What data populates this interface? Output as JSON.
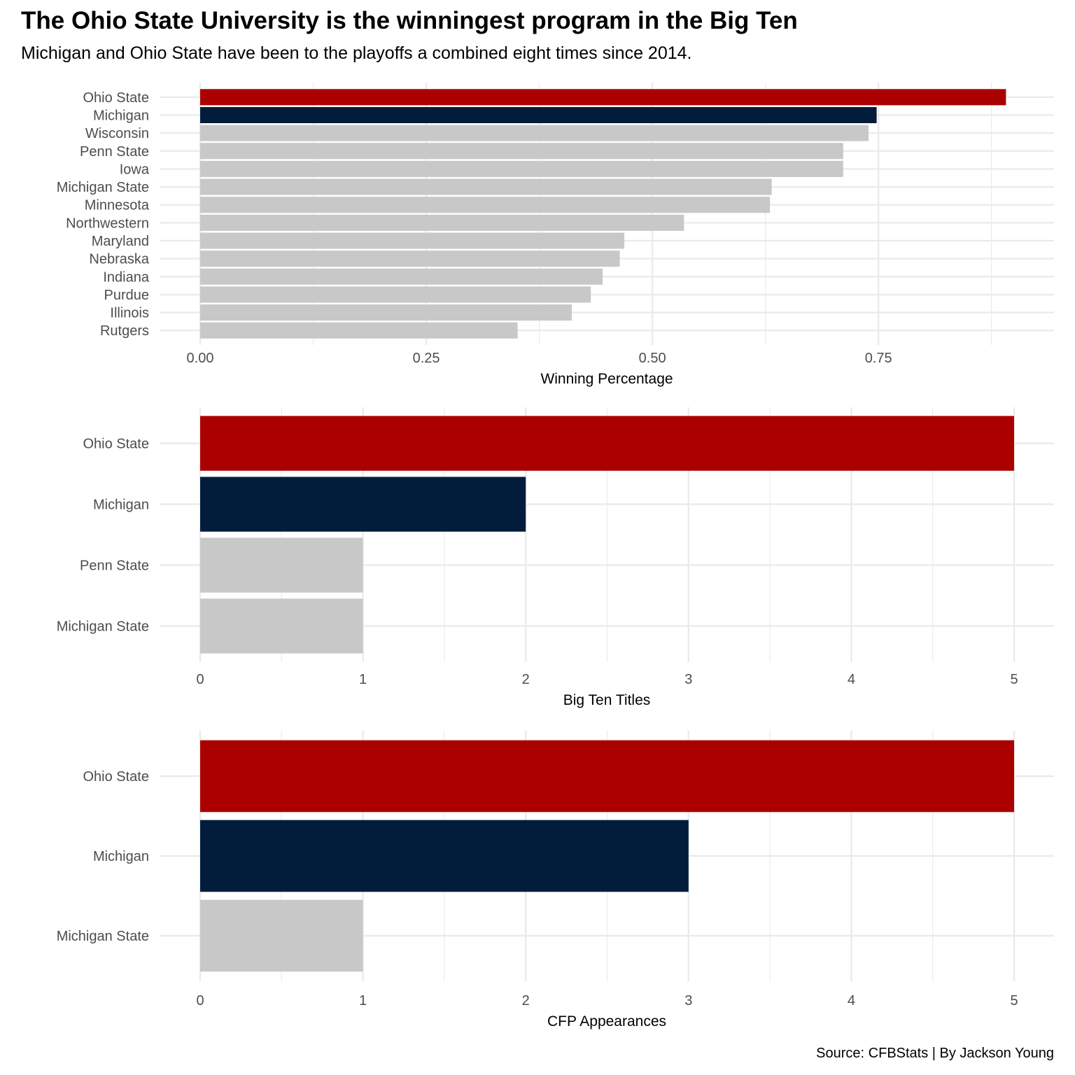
{
  "header": {
    "title": "The Ohio State University is the winningest program in the Big Ten",
    "subtitle": "Michigan and Ohio State have been to the playoffs a combined eight times since 2014."
  },
  "caption": "Source: CFBStats | By Jackson Young",
  "colors": {
    "ohio_state": "#ab0000",
    "michigan": "#021d3b",
    "other": "#c8c8c8",
    "grid": "#ebebeb"
  },
  "chart_data": [
    {
      "type": "bar",
      "orientation": "horizontal",
      "xlabel": "Winning Percentage",
      "xlim": [
        0,
        0.9
      ],
      "ticks": [
        0,
        0.25,
        0.5,
        0.75
      ],
      "tick_labels": [
        "0.00",
        "0.25",
        "0.50",
        "0.75"
      ],
      "categories": [
        "Ohio State",
        "Michigan",
        "Wisconsin",
        "Penn State",
        "Iowa",
        "Michigan State",
        "Minnesota",
        "Northwestern",
        "Maryland",
        "Nebraska",
        "Indiana",
        "Purdue",
        "Illinois",
        "Rutgers"
      ],
      "values": [
        0.891,
        0.748,
        0.739,
        0.711,
        0.711,
        0.632,
        0.63,
        0.535,
        0.469,
        0.464,
        0.445,
        0.432,
        0.411,
        0.351
      ],
      "bar_colors": [
        "ohio_state",
        "michigan",
        "other",
        "other",
        "other",
        "other",
        "other",
        "other",
        "other",
        "other",
        "other",
        "other",
        "other",
        "other"
      ],
      "grid": true
    },
    {
      "type": "bar",
      "orientation": "horizontal",
      "xlabel": "Big Ten Titles",
      "xlim": [
        0,
        5
      ],
      "ticks": [
        0,
        1,
        2,
        3,
        4,
        5
      ],
      "tick_labels": [
        "0",
        "1",
        "2",
        "3",
        "4",
        "5"
      ],
      "categories": [
        "Ohio State",
        "Michigan",
        "Penn State",
        "Michigan State"
      ],
      "values": [
        5,
        2,
        1,
        1
      ],
      "bar_colors": [
        "ohio_state",
        "michigan",
        "other",
        "other"
      ],
      "grid": true
    },
    {
      "type": "bar",
      "orientation": "horizontal",
      "xlabel": "CFP Appearances",
      "xlim": [
        0,
        5
      ],
      "ticks": [
        0,
        1,
        2,
        3,
        4,
        5
      ],
      "tick_labels": [
        "0",
        "1",
        "2",
        "3",
        "4",
        "5"
      ],
      "categories": [
        "Ohio State",
        "Michigan",
        "Michigan State"
      ],
      "values": [
        5,
        3,
        1
      ],
      "bar_colors": [
        "ohio_state",
        "michigan",
        "other"
      ],
      "grid": true
    }
  ]
}
